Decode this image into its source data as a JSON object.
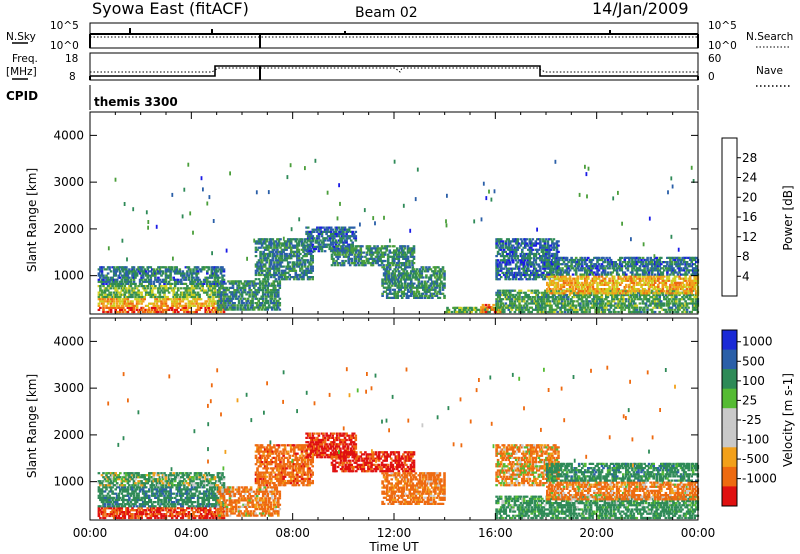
{
  "header": {
    "title": "Syowa East (fitACF)",
    "beam": "Beam 02",
    "date": "14/Jan/2009"
  },
  "status_panels": {
    "nsky_label": "N.Sky",
    "nsearch_label": "N.Search",
    "nsky_ticks": [
      "10^5",
      "10^0"
    ],
    "nsearch_ticks": [
      "10^5",
      "10^0"
    ],
    "freq_label_1": "Freq.",
    "freq_label_2": "[MHz]",
    "freq_ticks": [
      "18",
      "8"
    ],
    "nave_label": "Nave",
    "nave_ticks": [
      "60",
      "0"
    ],
    "cpid_label": "CPID",
    "cpid_value": "themis 3300"
  },
  "colors": {
    "power": [
      "#1a1ae6",
      "#2a5fa8",
      "#2e8a57",
      "#4a9e3a",
      "#cfcf20",
      "#f2a01a",
      "#ee6a10",
      "#e01010"
    ],
    "velocity": [
      "#e01010",
      "#ee6a10",
      "#f2a01a",
      "#c9c9c9",
      "#c9c9c9",
      "#55bb33",
      "#2e8a57",
      "#2a5fa8",
      "#1a2ad6"
    ]
  },
  "chart_data": [
    {
      "type": "heatmap",
      "name": "power",
      "ylabel": "Slant Range [km]",
      "ylim": [
        180,
        4500
      ],
      "xlim": [
        0,
        24
      ],
      "yticks": [
        "1000",
        "2000",
        "3000",
        "4000"
      ],
      "colorbar": {
        "label": "Power [dB]",
        "ticks": [
          "4",
          "8",
          "12",
          "16",
          "20",
          "24",
          "28"
        ],
        "range": [
          0,
          32
        ]
      },
      "echo_regions": [
        {
          "t0": 0.3,
          "t1": 5.3,
          "r0": 200,
          "r1": 330,
          "level": 27
        },
        {
          "t0": 0.3,
          "t1": 5.3,
          "r0": 330,
          "r1": 520,
          "level": 21
        },
        {
          "t0": 0.3,
          "t1": 5.3,
          "r0": 520,
          "r1": 800,
          "level": 14
        },
        {
          "t0": 0.3,
          "t1": 5.3,
          "r0": 800,
          "r1": 1200,
          "level": 8
        },
        {
          "t0": 5.0,
          "t1": 7.5,
          "r0": 250,
          "r1": 900,
          "level": 10
        },
        {
          "t0": 6.5,
          "t1": 8.8,
          "r0": 900,
          "r1": 1800,
          "level": 9
        },
        {
          "t0": 8.5,
          "t1": 10.5,
          "r0": 1500,
          "r1": 2050,
          "level": 7
        },
        {
          "t0": 9.5,
          "t1": 12.8,
          "r0": 1200,
          "r1": 1650,
          "level": 10
        },
        {
          "t0": 11.5,
          "t1": 14.0,
          "r0": 500,
          "r1": 1200,
          "level": 10
        },
        {
          "t0": 14.0,
          "t1": 16.2,
          "r0": 200,
          "r1": 330,
          "level": 14
        },
        {
          "t0": 15.4,
          "t1": 16.3,
          "r0": 200,
          "r1": 400,
          "level": 25
        },
        {
          "t0": 16.0,
          "t1": 18.5,
          "r0": 900,
          "r1": 1800,
          "level": 7
        },
        {
          "t0": 16.0,
          "t1": 24.0,
          "r0": 200,
          "r1": 700,
          "level": 12
        },
        {
          "t0": 18.0,
          "t1": 24.0,
          "r0": 600,
          "r1": 1000,
          "level": 21
        },
        {
          "t0": 18.0,
          "t1": 24.0,
          "r0": 1000,
          "r1": 1400,
          "level": 8
        }
      ]
    },
    {
      "type": "heatmap",
      "name": "velocity",
      "ylabel": "Slant Range [km]",
      "xlabel": "Time UT",
      "ylim": [
        180,
        4500
      ],
      "xlim": [
        0,
        24
      ],
      "xticks": [
        "00:00",
        "04:00",
        "08:00",
        "12:00",
        "16:00",
        "20:00",
        "00:00"
      ],
      "yticks": [
        "1000",
        "2000",
        "3000",
        "4000"
      ],
      "colorbar": {
        "label": "Velocity [m s-1]",
        "ticks": [
          "1000",
          "500",
          "100",
          "25",
          "-25",
          "-100",
          "-500",
          "-1000"
        ]
      },
      "echo_regions": [
        {
          "t0": 0.3,
          "t1": 5.3,
          "r0": 200,
          "r1": 450,
          "vel": -520
        },
        {
          "t0": 0.3,
          "t1": 5.3,
          "r0": 450,
          "r1": 900,
          "vel": 350
        },
        {
          "t0": 0.3,
          "t1": 5.3,
          "r0": 900,
          "r1": 1200,
          "vel": 150
        },
        {
          "t0": 5.0,
          "t1": 7.5,
          "r0": 250,
          "r1": 900,
          "vel": -200
        },
        {
          "t0": 6.5,
          "t1": 8.8,
          "r0": 900,
          "r1": 1800,
          "vel": -300
        },
        {
          "t0": 8.5,
          "t1": 10.5,
          "r0": 1500,
          "r1": 2050,
          "vel": -600
        },
        {
          "t0": 9.5,
          "t1": 12.8,
          "r0": 1200,
          "r1": 1650,
          "vel": -600
        },
        {
          "t0": 11.5,
          "t1": 14.0,
          "r0": 500,
          "r1": 1200,
          "vel": -250
        },
        {
          "t0": 16.0,
          "t1": 18.5,
          "r0": 900,
          "r1": 1800,
          "vel": -150
        },
        {
          "t0": 16.0,
          "t1": 24.0,
          "r0": 200,
          "r1": 700,
          "vel": 250
        },
        {
          "t0": 18.0,
          "t1": 24.0,
          "r0": 600,
          "r1": 1000,
          "vel": -200
        },
        {
          "t0": 18.0,
          "t1": 24.0,
          "r0": 1000,
          "r1": 1400,
          "vel": 300
        }
      ]
    }
  ]
}
